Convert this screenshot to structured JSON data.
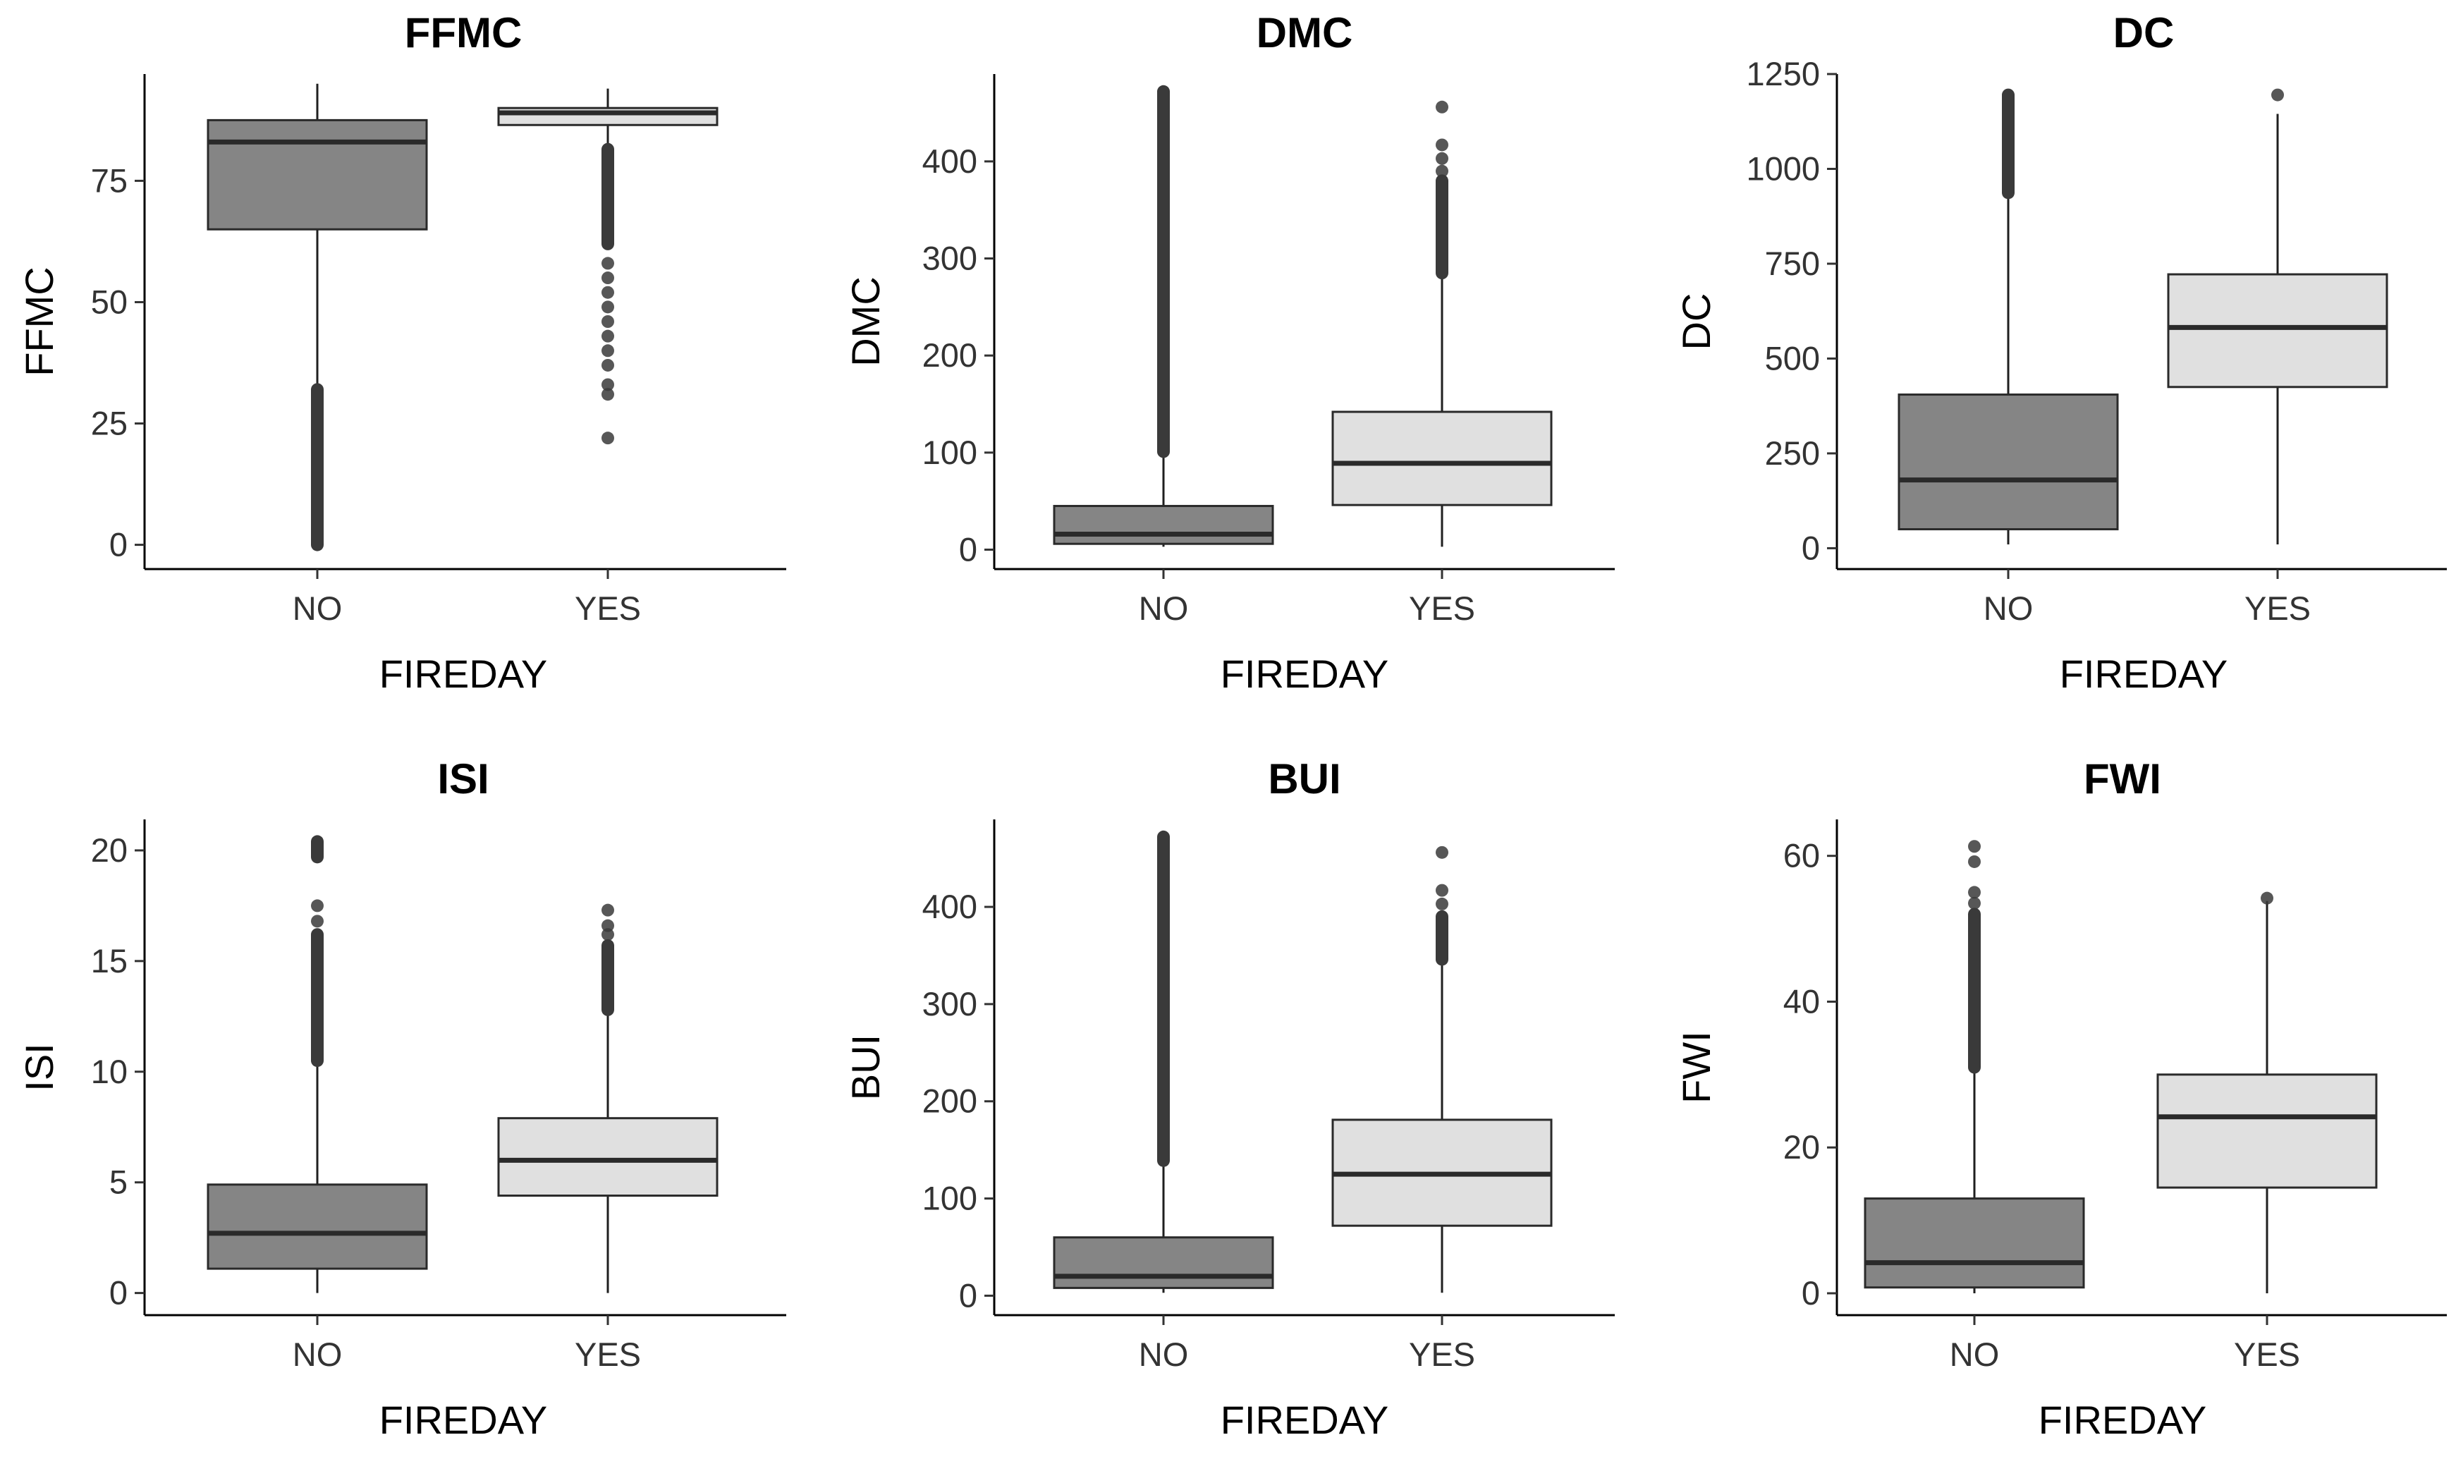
{
  "colors": {
    "no_fill": "#858585",
    "yes_fill": "#e0e0e0",
    "outlier": "#3a3a3a"
  },
  "chart_data": [
    {
      "type": "boxplot",
      "title": "FFMC",
      "xlabel": "FIREDAY",
      "ylabel": "FFMC",
      "ylim": [
        -5,
        97
      ],
      "yticks": [
        0,
        25,
        50,
        75
      ],
      "ytick_labels": [
        "0",
        "25",
        "50",
        "75"
      ],
      "categories": [
        "NO",
        "YES"
      ],
      "boxes": [
        {
          "category": "NO",
          "q1": 65,
          "median": 83,
          "q3": 87.5,
          "whisker_low": 33,
          "whisker_high": 95,
          "outlier_ranges": [
            [
              0,
              32
            ]
          ],
          "outliers": []
        },
        {
          "category": "YES",
          "q1": 86.5,
          "median": 89,
          "q3": 90,
          "whisker_low": 82,
          "whisker_high": 94,
          "outlier_ranges": [
            [
              62,
              81.5
            ]
          ],
          "outliers": [
            58,
            55,
            52,
            49,
            46,
            43,
            40,
            37,
            33,
            31,
            22
          ]
        }
      ]
    },
    {
      "type": "boxplot",
      "title": "DMC",
      "xlabel": "FIREDAY",
      "ylabel": "DMC",
      "ylim": [
        -20,
        490
      ],
      "yticks": [
        0,
        100,
        200,
        300,
        400
      ],
      "ytick_labels": [
        "0",
        "100",
        "200",
        "300",
        "400"
      ],
      "categories": [
        "NO",
        "YES"
      ],
      "boxes": [
        {
          "category": "NO",
          "q1": 6,
          "median": 16,
          "q3": 45,
          "whisker_low": 3,
          "whisker_high": 100,
          "outlier_ranges": [
            [
              101,
              472
            ]
          ],
          "outliers": []
        },
        {
          "category": "YES",
          "q1": 46,
          "median": 89,
          "q3": 142,
          "whisker_low": 3,
          "whisker_high": 283,
          "outlier_ranges": [
            [
              285,
              380
            ]
          ],
          "outliers": [
            390,
            403,
            417,
            456
          ]
        }
      ]
    },
    {
      "type": "boxplot",
      "title": "DC",
      "xlabel": "FIREDAY",
      "ylabel": "DC",
      "ylim": [
        -55,
        1250
      ],
      "yticks": [
        0,
        250,
        500,
        750,
        1000,
        1250
      ],
      "ytick_labels": [
        "0",
        "250",
        "500",
        "750",
        "1000",
        "1250"
      ],
      "categories": [
        "NO",
        "YES"
      ],
      "boxes": [
        {
          "category": "NO",
          "q1": 50,
          "median": 180,
          "q3": 405,
          "whisker_low": 10,
          "whisker_high": 935,
          "outlier_ranges": [
            [
              937,
              1195
            ]
          ],
          "outliers": []
        },
        {
          "category": "YES",
          "q1": 425,
          "median": 582,
          "q3": 722,
          "whisker_low": 10,
          "whisker_high": 1145,
          "outlier_ranges": [],
          "outliers": [
            1195
          ]
        }
      ]
    },
    {
      "type": "boxplot",
      "title": "ISI",
      "xlabel": "FIREDAY",
      "ylabel": "ISI",
      "ylim": [
        -1,
        21.4
      ],
      "yticks": [
        0,
        5,
        10,
        15,
        20
      ],
      "ytick_labels": [
        "0",
        "5",
        "10",
        "15",
        "20"
      ],
      "categories": [
        "NO",
        "YES"
      ],
      "boxes": [
        {
          "category": "NO",
          "q1": 1.1,
          "median": 2.7,
          "q3": 4.9,
          "whisker_low": 0,
          "whisker_high": 10.4,
          "outlier_ranges": [
            [
              10.5,
              16.2
            ],
            [
              19.7,
              20.4
            ]
          ],
          "outliers": [
            16.8,
            17.5
          ]
        },
        {
          "category": "YES",
          "q1": 4.4,
          "median": 6.0,
          "q3": 7.9,
          "whisker_low": 0,
          "whisker_high": 12.7,
          "outlier_ranges": [
            [
              12.8,
              15.7
            ]
          ],
          "outliers": [
            16.2,
            16.6,
            17.3
          ]
        }
      ]
    },
    {
      "type": "boxplot",
      "title": "BUI",
      "xlabel": "FIREDAY",
      "ylabel": "BUI",
      "ylim": [
        -20,
        490
      ],
      "yticks": [
        0,
        100,
        200,
        300,
        400
      ],
      "ytick_labels": [
        "0",
        "100",
        "200",
        "300",
        "400"
      ],
      "categories": [
        "NO",
        "YES"
      ],
      "boxes": [
        {
          "category": "NO",
          "q1": 8,
          "median": 20,
          "q3": 60,
          "whisker_low": 3,
          "whisker_high": 138,
          "outlier_ranges": [
            [
              139,
              472
            ]
          ],
          "outliers": []
        },
        {
          "category": "YES",
          "q1": 72,
          "median": 125,
          "q3": 181,
          "whisker_low": 3,
          "whisker_high": 345,
          "outlier_ranges": [
            [
              346,
              390
            ]
          ],
          "outliers": [
            403,
            417,
            456
          ]
        }
      ]
    },
    {
      "type": "boxplot",
      "title": "FWI",
      "xlabel": "FIREDAY",
      "ylabel": "FWI",
      "ylim": [
        -3,
        65
      ],
      "yticks": [
        0,
        20,
        40,
        60
      ],
      "ytick_labels": [
        "0",
        "20",
        "40",
        "60"
      ],
      "categories": [
        "NO",
        "YES"
      ],
      "boxes": [
        {
          "category": "NO",
          "q1": 0.8,
          "median": 4.2,
          "q3": 13.0,
          "whisker_low": 0,
          "whisker_high": 30.8,
          "outlier_ranges": [
            [
              31,
              52
            ]
          ],
          "outliers": [
            53.5,
            55,
            59.2,
            61.3
          ]
        },
        {
          "category": "YES",
          "q1": 14.5,
          "median": 24.2,
          "q3": 30.0,
          "whisker_low": 0,
          "whisker_high": 53.8,
          "outlier_ranges": [],
          "outliers": [
            54.2
          ]
        }
      ]
    }
  ]
}
